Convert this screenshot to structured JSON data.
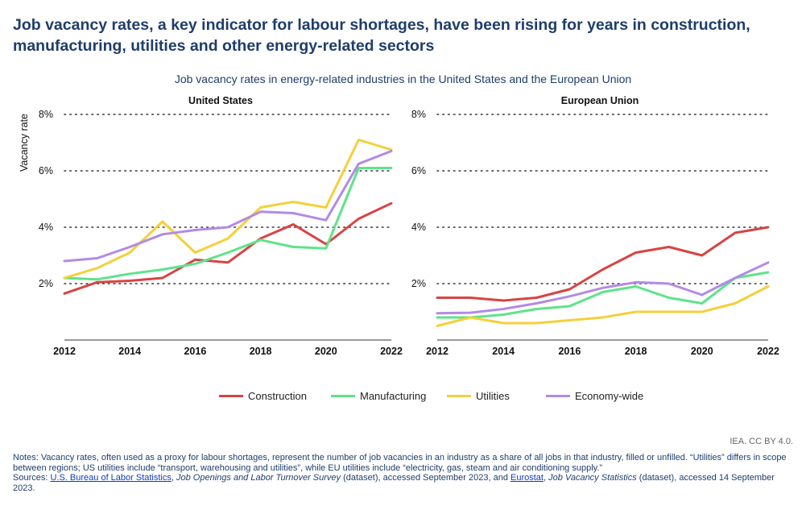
{
  "title": "Job vacancy rates, a key indicator for labour shortages, have been rising for years in construction, manufacturing, utilities and other energy-related sectors",
  "subtitle": "Job vacancy rates in energy-related industries in the United States and the European Union",
  "colors": {
    "Construction": "#d94343",
    "Manufacturing": "#5fe38a",
    "Utilities": "#f4d03a",
    "Economy-wide": "#b38ae6"
  },
  "legend": [
    "Construction",
    "Manufacturing",
    "Utilities",
    "Economy-wide"
  ],
  "credit": "IEA. CC BY 4.0.",
  "notes": {
    "notes_text": "Notes: Vacancy rates, often used as a proxy for labour shortages, represent the number of job vacancies in an industry as a share of all jobs in that industry, filled or unfilled. “Utilities” differs in scope between regions; US utilities include “transport, warehousing and utilities”, while EU utilities include “electricity, gas, steam and air conditioning supply.”",
    "sources_prefix": "Sources: ",
    "bls_link": "U.S. Bureau of Labor Statistics",
    "bls_sep": ", ",
    "jolts_title": "Job Openings and Labor Turnover Survey",
    "jolts_suffix": " (dataset), accessed September 2023, and ",
    "eurostat_link": "Eurostat",
    "eurostat_sep": ", ",
    "jvs_title": "Job Vacancy Statistics",
    "jvs_suffix": " (dataset), accessed 14 September 2023."
  },
  "chart_data": [
    {
      "type": "line",
      "title": "United States",
      "ylabel": "Vacancy rate",
      "xlabel": "",
      "ylim": [
        0,
        8
      ],
      "yticks": [
        2,
        4,
        6,
        8
      ],
      "ytick_labels": [
        "2%",
        "4%",
        "6%",
        "8%"
      ],
      "xticks": [
        2012,
        2014,
        2016,
        2018,
        2020,
        2022
      ],
      "x": [
        2012,
        2013,
        2014,
        2015,
        2016,
        2017,
        2018,
        2019,
        2020,
        2021,
        2022
      ],
      "series": [
        {
          "name": "Construction",
          "values": [
            1.65,
            2.05,
            2.1,
            2.2,
            2.85,
            2.75,
            3.6,
            4.1,
            3.4,
            4.3,
            4.85
          ]
        },
        {
          "name": "Manufacturing",
          "values": [
            2.2,
            2.15,
            2.35,
            2.5,
            2.7,
            3.1,
            3.55,
            3.3,
            3.25,
            6.1,
            6.1
          ]
        },
        {
          "name": "Utilities",
          "values": [
            2.2,
            2.55,
            3.1,
            4.2,
            3.1,
            3.6,
            4.7,
            4.9,
            4.7,
            7.1,
            6.75
          ]
        },
        {
          "name": "Economy-wide",
          "values": [
            2.8,
            2.9,
            3.3,
            3.75,
            3.9,
            4.0,
            4.55,
            4.5,
            4.25,
            6.25,
            6.7
          ]
        }
      ]
    },
    {
      "type": "line",
      "title": "European Union",
      "ylabel": "",
      "xlabel": "",
      "ylim": [
        0,
        8
      ],
      "yticks": [
        2,
        4,
        6,
        8
      ],
      "ytick_labels": [
        "2%",
        "4%",
        "6%",
        "8%"
      ],
      "xticks": [
        2012,
        2014,
        2016,
        2018,
        2020,
        2022
      ],
      "x": [
        2012,
        2013,
        2014,
        2015,
        2016,
        2017,
        2018,
        2019,
        2020,
        2021,
        2022
      ],
      "series": [
        {
          "name": "Construction",
          "values": [
            1.5,
            1.5,
            1.4,
            1.5,
            1.8,
            2.5,
            3.1,
            3.3,
            3.0,
            3.8,
            4.0
          ]
        },
        {
          "name": "Manufacturing",
          "values": [
            0.8,
            0.8,
            0.9,
            1.1,
            1.2,
            1.7,
            1.9,
            1.5,
            1.3,
            2.2,
            2.4
          ]
        },
        {
          "name": "Utilities",
          "values": [
            0.5,
            0.8,
            0.6,
            0.6,
            0.7,
            0.8,
            1.0,
            1.0,
            1.0,
            1.3,
            1.9
          ]
        },
        {
          "name": "Economy-wide",
          "values": [
            0.95,
            0.97,
            1.1,
            1.3,
            1.55,
            1.85,
            2.05,
            2.0,
            1.6,
            2.2,
            2.75
          ]
        }
      ]
    }
  ]
}
